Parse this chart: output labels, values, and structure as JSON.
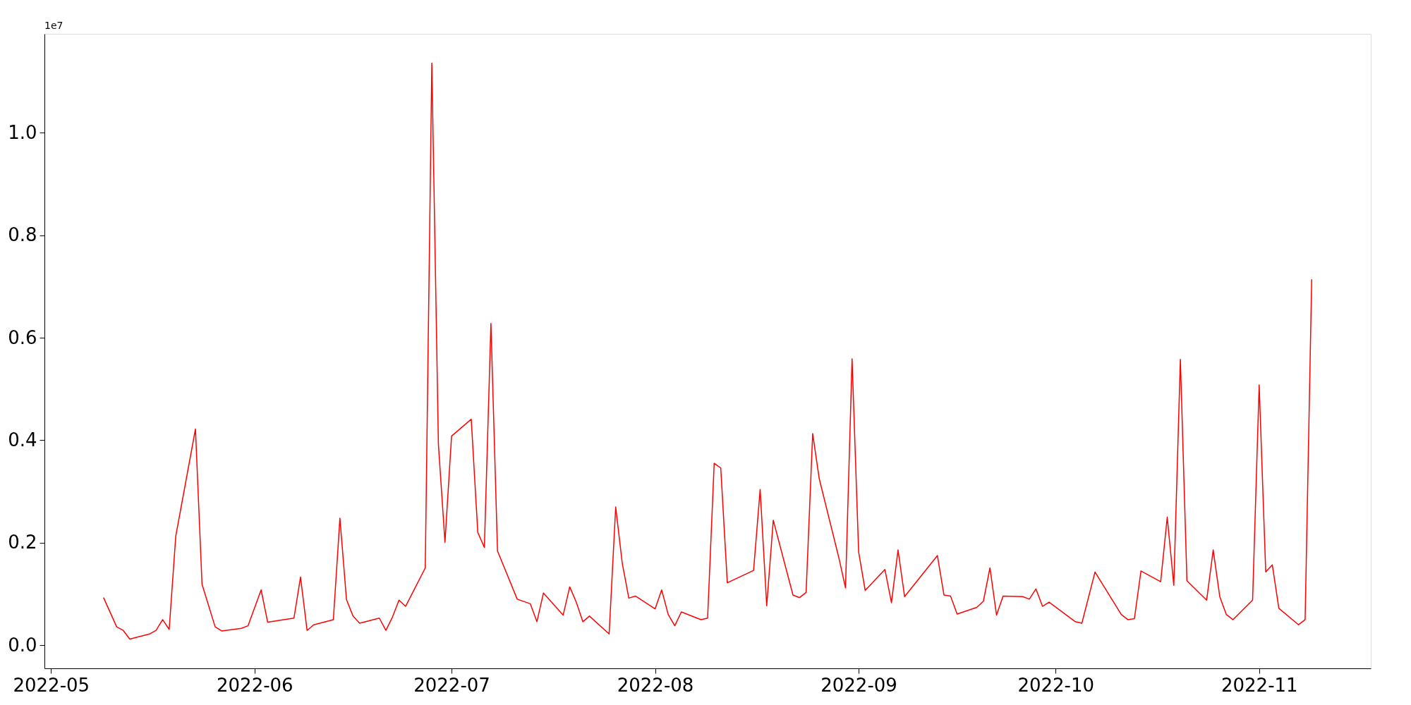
{
  "chart_data": {
    "type": "line",
    "x": [
      "2022-05-09",
      "2022-05-11",
      "2022-05-12",
      "2022-05-13",
      "2022-05-16",
      "2022-05-17",
      "2022-05-18",
      "2022-05-19",
      "2022-05-20",
      "2022-05-23",
      "2022-05-24",
      "2022-05-26",
      "2022-05-27",
      "2022-05-30",
      "2022-05-31",
      "2022-06-02",
      "2022-06-03",
      "2022-06-07",
      "2022-06-08",
      "2022-06-09",
      "2022-06-10",
      "2022-06-13",
      "2022-06-14",
      "2022-06-15",
      "2022-06-16",
      "2022-06-17",
      "2022-06-20",
      "2022-06-21",
      "2022-06-22",
      "2022-06-23",
      "2022-06-24",
      "2022-06-27",
      "2022-06-28",
      "2022-06-29",
      "2022-06-30",
      "2022-07-01",
      "2022-07-04",
      "2022-07-05",
      "2022-07-06",
      "2022-07-07",
      "2022-07-08",
      "2022-07-11",
      "2022-07-13",
      "2022-07-14",
      "2022-07-15",
      "2022-07-18",
      "2022-07-19",
      "2022-07-20",
      "2022-07-21",
      "2022-07-22",
      "2022-07-25",
      "2022-07-26",
      "2022-07-27",
      "2022-07-28",
      "2022-07-29",
      "2022-08-01",
      "2022-08-02",
      "2022-08-03",
      "2022-08-04",
      "2022-08-05",
      "2022-08-08",
      "2022-08-09",
      "2022-08-10",
      "2022-08-11",
      "2022-08-12",
      "2022-08-16",
      "2022-08-17",
      "2022-08-18",
      "2022-08-19",
      "2022-08-22",
      "2022-08-23",
      "2022-08-24",
      "2022-08-25",
      "2022-08-26",
      "2022-08-29",
      "2022-08-30",
      "2022-08-31",
      "2022-09-01",
      "2022-09-02",
      "2022-09-05",
      "2022-09-06",
      "2022-09-07",
      "2022-09-08",
      "2022-09-13",
      "2022-09-14",
      "2022-09-15",
      "2022-09-16",
      "2022-09-19",
      "2022-09-20",
      "2022-09-21",
      "2022-09-22",
      "2022-09-23",
      "2022-09-26",
      "2022-09-27",
      "2022-09-28",
      "2022-09-29",
      "2022-09-30",
      "2022-10-04",
      "2022-10-05",
      "2022-10-07",
      "2022-10-11",
      "2022-10-12",
      "2022-10-13",
      "2022-10-14",
      "2022-10-17",
      "2022-10-18",
      "2022-10-19",
      "2022-10-20",
      "2022-10-21",
      "2022-10-24",
      "2022-10-25",
      "2022-10-26",
      "2022-10-27",
      "2022-10-28",
      "2022-10-31",
      "2022-11-01",
      "2022-11-02",
      "2022-11-03",
      "2022-11-04",
      "2022-11-07",
      "2022-11-08",
      "2022-11-09"
    ],
    "series": [
      {
        "color": "#ff0000",
        "values": [
          0.093,
          0.036,
          0.029,
          0.012,
          0.022,
          0.029,
          0.05,
          0.031,
          0.213,
          0.422,
          0.119,
          0.036,
          0.028,
          0.033,
          0.038,
          0.108,
          0.045,
          0.053,
          0.133,
          0.029,
          0.04,
          0.05,
          0.248,
          0.089,
          0.057,
          0.043,
          0.053,
          0.029,
          0.055,
          0.088,
          0.076,
          0.151,
          1.136,
          0.392,
          0.201,
          0.408,
          0.441,
          0.22,
          0.191,
          0.628,
          0.184,
          0.09,
          0.081,
          0.046,
          0.102,
          0.059,
          0.114,
          0.084,
          0.046,
          0.057,
          0.022,
          0.27,
          0.16,
          0.092,
          0.096,
          0.071,
          0.108,
          0.06,
          0.038,
          0.065,
          0.05,
          0.053,
          0.355,
          0.346,
          0.122,
          0.146,
          0.304,
          0.077,
          0.244,
          0.098,
          0.093,
          0.103,
          0.413,
          0.325,
          0.17,
          0.112,
          0.559,
          0.182,
          0.107,
          0.148,
          0.083,
          0.186,
          0.095,
          0.175,
          0.098,
          0.096,
          0.061,
          0.074,
          0.086,
          0.151,
          0.059,
          0.096,
          0.095,
          0.09,
          0.11,
          0.076,
          0.084,
          0.046,
          0.043,
          0.143,
          0.06,
          0.05,
          0.052,
          0.145,
          0.124,
          0.25,
          0.117,
          0.558,
          0.126,
          0.088,
          0.186,
          0.095,
          0.06,
          0.05,
          0.088,
          0.508,
          0.143,
          0.157,
          0.072,
          0.04,
          0.05,
          0.714
        ]
      }
    ],
    "xlim": [
      "2022-04-30",
      "2022-11-18"
    ],
    "xticks": [
      {
        "value": "2022-05-01",
        "label": "2022-05"
      },
      {
        "value": "2022-06-01",
        "label": "2022-06"
      },
      {
        "value": "2022-07-01",
        "label": "2022-07"
      },
      {
        "value": "2022-08-01",
        "label": "2022-08"
      },
      {
        "value": "2022-09-01",
        "label": "2022-09"
      },
      {
        "value": "2022-10-01",
        "label": "2022-10"
      },
      {
        "value": "2022-11-01",
        "label": "2022-11"
      }
    ],
    "ylim": [
      -0.045,
      1.193
    ],
    "yticks": [
      {
        "value": 0,
        "label": "0.0"
      },
      0.2,
      0.4,
      0.6,
      0.8,
      {
        "value": 1,
        "label": "1.0"
      }
    ],
    "annotations": [
      "1e7"
    ],
    "grid": false,
    "marker": "none",
    "line_style": "solid"
  }
}
